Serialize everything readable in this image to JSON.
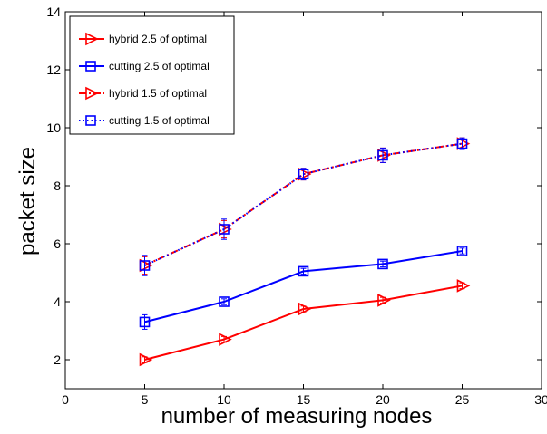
{
  "chart_data": {
    "type": "line",
    "xlabel": "number of measuring nodes",
    "ylabel": "packet size",
    "xlim": [
      0,
      30
    ],
    "ylim": [
      1,
      14
    ],
    "xticks": [
      "0",
      "5",
      "10",
      "15",
      "20",
      "25",
      "30"
    ],
    "yticks": [
      "2",
      "4",
      "6",
      "8",
      "10",
      "12",
      "14"
    ],
    "grid": false,
    "legend_position": "top-left",
    "series": [
      {
        "name": "hybrid 2.5 of optimal",
        "color": "#ff0000",
        "marker": "triangle-right",
        "line": "solid",
        "x": [
          5,
          10,
          15,
          20,
          25
        ],
        "y": [
          2.0,
          2.7,
          3.75,
          4.05,
          4.55
        ],
        "err": [
          0.1,
          0.1,
          0.1,
          0.1,
          0.1
        ]
      },
      {
        "name": "cutting 2.5 of optimal",
        "color": "#0000ff",
        "marker": "square",
        "line": "solid",
        "x": [
          5,
          10,
          15,
          20,
          25
        ],
        "y": [
          3.3,
          4.0,
          5.05,
          5.3,
          5.75
        ],
        "err": [
          0.25,
          0.1,
          0.1,
          0.1,
          0.1
        ]
      },
      {
        "name": "hybrid 1.5 of optimal",
        "color": "#ff0000",
        "marker": "triangle-right",
        "line": "dashdot",
        "x": [
          5,
          10,
          15,
          20,
          25
        ],
        "y": [
          5.25,
          6.5,
          8.4,
          9.05,
          9.45
        ],
        "err": [
          0.3,
          0.3,
          0.2,
          0.25,
          0.2
        ]
      },
      {
        "name": "cutting 1.5 of optimal",
        "color": "#0000ff",
        "marker": "square",
        "line": "dotted",
        "x": [
          5,
          10,
          15,
          20,
          25
        ],
        "y": [
          5.25,
          6.5,
          8.4,
          9.05,
          9.45
        ],
        "err": [
          0.35,
          0.35,
          0.2,
          0.25,
          0.2
        ]
      }
    ]
  }
}
